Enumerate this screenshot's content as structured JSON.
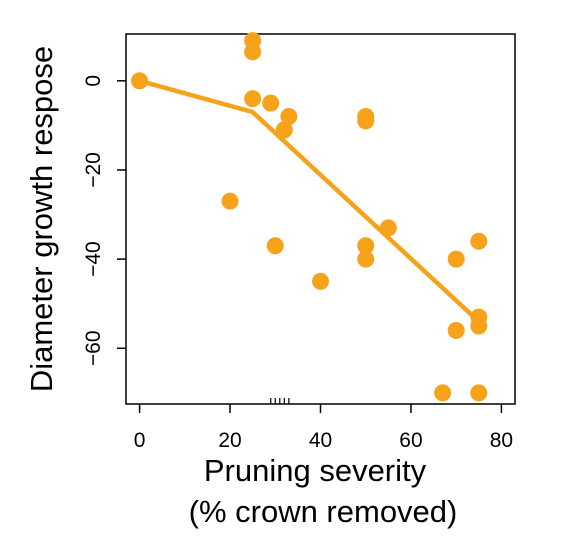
{
  "chart_data": {
    "type": "scatter",
    "title": "",
    "xlabel": "Pruning severity",
    "xlabel_line2": "(% crown removed)",
    "ylabel": "Diameter growth respose",
    "xlim": [
      -3,
      83
    ],
    "ylim": [
      -72.5,
      10.5
    ],
    "xticks": [
      0,
      20,
      40,
      60,
      80
    ],
    "xtick_labels": [
      "0",
      "20",
      "40",
      "60",
      "80"
    ],
    "xminor_ticks": [
      29,
      30,
      31,
      32,
      33
    ],
    "yticks": [
      0,
      -20,
      -40,
      -60
    ],
    "ytick_labels": [
      "0",
      "−20",
      "−40",
      "−60"
    ],
    "point_color": "#F7A21B",
    "line_color": "#F7A21B",
    "grid": false,
    "legend": "none",
    "points": [
      {
        "x": 0,
        "y": 0
      },
      {
        "x": 20,
        "y": -27
      },
      {
        "x": 25,
        "y": 9
      },
      {
        "x": 25,
        "y": 6.5
      },
      {
        "x": 25,
        "y": -4
      },
      {
        "x": 29,
        "y": -5
      },
      {
        "x": 30,
        "y": -37
      },
      {
        "x": 32,
        "y": -11
      },
      {
        "x": 33,
        "y": -8
      },
      {
        "x": 40,
        "y": -45
      },
      {
        "x": 50,
        "y": -8
      },
      {
        "x": 50,
        "y": -9
      },
      {
        "x": 50,
        "y": -37
      },
      {
        "x": 50,
        "y": -40
      },
      {
        "x": 55,
        "y": -33
      },
      {
        "x": 67,
        "y": -70
      },
      {
        "x": 70,
        "y": -56
      },
      {
        "x": 70,
        "y": -40
      },
      {
        "x": 75,
        "y": -36
      },
      {
        "x": 75,
        "y": -53
      },
      {
        "x": 75,
        "y": -55
      },
      {
        "x": 75,
        "y": -70
      }
    ],
    "fit_line": [
      {
        "x": 0,
        "y": 0
      },
      {
        "x": 25,
        "y": -7
      },
      {
        "x": 75,
        "y": -54
      }
    ]
  }
}
